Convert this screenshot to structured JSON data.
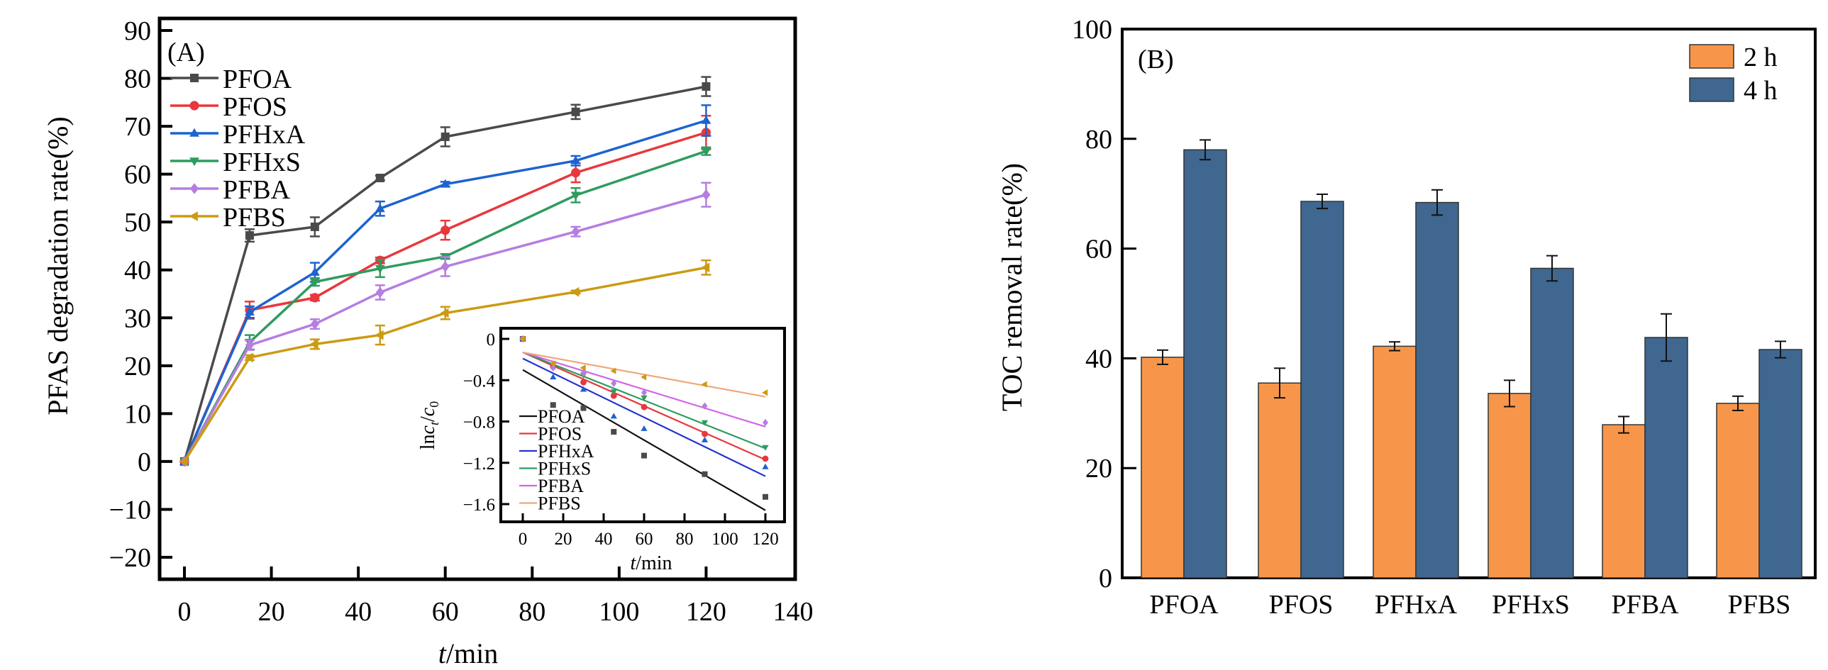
{
  "chart_data": [
    {
      "id": "A",
      "type": "line",
      "panel_label": "(A)",
      "title": "",
      "xlabel_italic": "t",
      "xlabel_rest": "/min",
      "ylabel": "PFAS degradation rate(%)",
      "xlim": [
        -5,
        140
      ],
      "ylim": [
        -25,
        90
      ],
      "xticks": [
        0,
        20,
        40,
        60,
        80,
        100,
        120,
        140
      ],
      "yticks": [
        90,
        80,
        70,
        60,
        50,
        40,
        30,
        20,
        10,
        0,
        -10,
        -20
      ],
      "ytick_labels": [
        "90",
        "80",
        "70",
        "60",
        "50",
        "40",
        "30",
        "20",
        "10",
        "0",
        "−10",
        "−20"
      ],
      "legend_position": "top-left",
      "x": [
        0,
        15,
        30,
        45,
        60,
        90,
        120
      ],
      "series": [
        {
          "name": "PFOA",
          "color": "#4a4a4a",
          "marker": "square",
          "values": [
            0,
            47.2,
            49.0,
            59.2,
            67.8,
            73.0,
            78.3
          ],
          "errors": [
            0,
            1.3,
            2.0,
            0.5,
            2.0,
            1.5,
            2.0
          ]
        },
        {
          "name": "PFOS",
          "color": "#e8383d",
          "marker": "circle",
          "values": [
            0,
            31.6,
            34.2,
            42.0,
            48.3,
            60.3,
            68.7
          ],
          "errors": [
            0,
            1.8,
            0.6,
            0.6,
            2.0,
            2.0,
            3.5
          ]
        },
        {
          "name": "PFHxA",
          "color": "#1c63d1",
          "marker": "triangle-up",
          "values": [
            0,
            31.2,
            39.5,
            52.8,
            57.9,
            62.8,
            71.2
          ],
          "errors": [
            0,
            1.2,
            2.0,
            1.5,
            0.5,
            1.0,
            3.2
          ]
        },
        {
          "name": "PFHxS",
          "color": "#2e9c5f",
          "marker": "triangle-down",
          "values": [
            0,
            24.9,
            37.5,
            40.3,
            42.8,
            55.6,
            64.8
          ],
          "errors": [
            0,
            1.5,
            0.8,
            1.8,
            0.5,
            1.5,
            0.8
          ]
        },
        {
          "name": "PFBA",
          "color": "#b57ee0",
          "marker": "diamond",
          "values": [
            0,
            24.3,
            28.7,
            35.3,
            40.7,
            48.0,
            55.7
          ],
          "errors": [
            0,
            1.0,
            1.0,
            1.5,
            2.0,
            1.0,
            2.5
          ]
        },
        {
          "name": "PFBS",
          "color": "#cc9a12",
          "marker": "triangle-left",
          "values": [
            0,
            21.7,
            24.5,
            26.4,
            31.0,
            35.4,
            40.5
          ],
          "errors": [
            0,
            0.5,
            1.0,
            2.0,
            1.3,
            0.3,
            1.5
          ]
        }
      ],
      "inset": {
        "type": "scatter",
        "xlabel_italic": "t",
        "xlabel_rest": "/min",
        "ylabel_prefix": "ln",
        "ylabel_var": "c",
        "ylabel_sub_t": "t",
        "ylabel_sub_0": "0",
        "xlim": [
          -5,
          130
        ],
        "ylim": [
          -1.82,
          0.12
        ],
        "xticks": [
          0,
          20,
          40,
          60,
          80,
          100,
          120
        ],
        "yticks": [
          0,
          -0.4,
          -0.8,
          -1.2,
          -1.6
        ],
        "ytick_labels": [
          "0",
          "−0.4",
          "−0.8",
          "−1.2",
          "−1.6"
        ],
        "legend_position": "bottom-left",
        "x": [
          0,
          15,
          30,
          45,
          60,
          90,
          120
        ],
        "series": [
          {
            "name": "PFOA",
            "color": "#4a4a4a",
            "line_color": "#111111",
            "marker": "square",
            "values": [
              0,
              -0.64,
              -0.67,
              -0.9,
              -1.13,
              -1.31,
              -1.53
            ],
            "fit": [
              [
                0,
                -0.3
              ],
              [
                120,
                -1.66
              ]
            ]
          },
          {
            "name": "PFOS",
            "color": "#e8383d",
            "line_color": "#e8383d",
            "marker": "circle",
            "values": [
              0,
              -0.27,
              -0.42,
              -0.55,
              -0.66,
              -0.92,
              -1.16
            ],
            "fit": [
              [
                0,
                -0.13
              ],
              [
                120,
                -1.17
              ]
            ]
          },
          {
            "name": "PFHxA",
            "color": "#1c63d1",
            "line_color": "#2233cc",
            "marker": "triangle-up",
            "values": [
              0,
              -0.37,
              -0.49,
              -0.75,
              -0.87,
              -0.98,
              -1.24
            ],
            "fit": [
              [
                0,
                -0.19
              ],
              [
                120,
                -1.33
              ]
            ]
          },
          {
            "name": "PFHxS",
            "color": "#2e9c5f",
            "line_color": "#2e9c5f",
            "marker": "triangle-down",
            "values": [
              0,
              -0.25,
              -0.35,
              -0.51,
              -0.57,
              -0.81,
              -1.05
            ],
            "fit": [
              [
                0,
                -0.13
              ],
              [
                120,
                -1.06
              ]
            ]
          },
          {
            "name": "PFBA",
            "color": "#b57ee0",
            "line_color": "#d266e8",
            "marker": "diamond",
            "values": [
              0,
              -0.28,
              -0.33,
              -0.43,
              -0.52,
              -0.65,
              -0.81
            ],
            "fit": [
              [
                0,
                -0.13
              ],
              [
                120,
                -0.85
              ]
            ]
          },
          {
            "name": "PFBS",
            "color": "#cc9a12",
            "line_color": "#f0a878",
            "marker": "triangle-left",
            "values": [
              0,
              -0.24,
              -0.28,
              -0.31,
              -0.37,
              -0.44,
              -0.52
            ],
            "fit": [
              [
                0,
                -0.13
              ],
              [
                120,
                -0.56
              ]
            ]
          }
        ]
      }
    },
    {
      "id": "B",
      "type": "bar",
      "panel_label": "(B)",
      "title": "",
      "xlabel": "",
      "ylabel": "TOC removal rate(%)",
      "ylim": [
        0,
        100
      ],
      "yticks": [
        0,
        20,
        40,
        60,
        80,
        100
      ],
      "legend_position": "top-right",
      "categories": [
        "PFOA",
        "PFOS",
        "PFHxA",
        "PFHxS",
        "PFBA",
        "PFBS"
      ],
      "series": [
        {
          "name": "2 h",
          "color": "#f7964a",
          "values": [
            40.2,
            35.5,
            42.2,
            33.6,
            27.9,
            31.8
          ],
          "errors": [
            1.3,
            2.7,
            0.8,
            2.4,
            1.5,
            1.3
          ]
        },
        {
          "name": "4 h",
          "color": "#3f6790",
          "values": [
            78.0,
            68.6,
            68.4,
            56.4,
            43.8,
            41.6
          ],
          "errors": [
            1.8,
            1.3,
            2.3,
            2.3,
            4.3,
            1.5
          ]
        }
      ]
    }
  ]
}
